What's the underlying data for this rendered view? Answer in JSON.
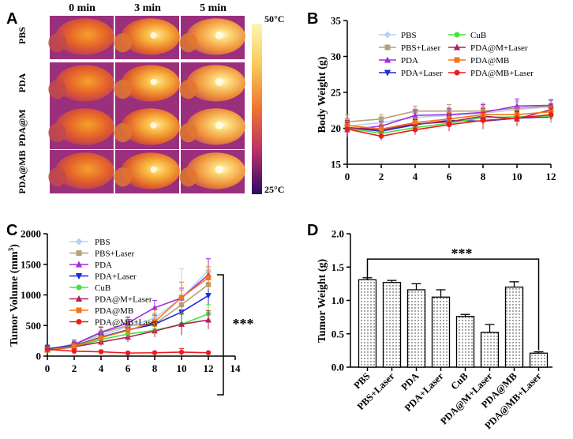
{
  "panel_labels": {
    "a": "A",
    "b": "B",
    "c": "C",
    "d": "D"
  },
  "colors": {
    "PBS": "#b9d3ef",
    "PBS+Laser": "#b5a27a",
    "PDA": "#a12fe0",
    "PDA+Laser": "#1d2bd6",
    "CuB": "#45e33b",
    "PDA@M+Laser": "#b0215b",
    "PDA@MB": "#f2761a",
    "PDA@MB+Laser": "#ee1c1c",
    "colorbar_top": "#fbf7b0",
    "colorbar_bottom": "#2a0a64"
  },
  "panel_a": {
    "time_labels": [
      "0 min",
      "3 min",
      "5 min"
    ],
    "row_labels": [
      "PBS",
      "PDA",
      "PDA@M",
      "PDA@MB"
    ],
    "scale_max": "50°C",
    "scale_min": "25°C"
  },
  "chart_data": [
    {
      "panel": "B",
      "type": "line",
      "title": "",
      "xlabel": "",
      "ylabel": "Body Weight (g)",
      "xlim": [
        0,
        12
      ],
      "ylim": [
        15,
        35
      ],
      "x": [
        0,
        2,
        4,
        6,
        8,
        10,
        12
      ],
      "xticks": [
        "0",
        "2",
        "4",
        "6",
        "8",
        "10",
        "12"
      ],
      "yticks": [
        "15",
        "20",
        "25",
        "30",
        "35"
      ],
      "series": [
        {
          "name": "PBS",
          "values": [
            20.3,
            20.8,
            21.5,
            21.8,
            22.1,
            22.6,
            23.0
          ]
        },
        {
          "name": "PBS+Laser",
          "values": [
            20.9,
            21.3,
            22.4,
            22.4,
            22.4,
            22.8,
            23.1
          ]
        },
        {
          "name": "PDA",
          "values": [
            19.8,
            20.3,
            21.8,
            21.9,
            22.2,
            23.1,
            23.2
          ]
        },
        {
          "name": "PDA+Laser",
          "values": [
            20.1,
            19.6,
            20.5,
            21.1,
            21.0,
            21.4,
            21.6
          ]
        },
        {
          "name": "CuB",
          "values": [
            20.0,
            19.3,
            20.1,
            20.7,
            21.5,
            21.6,
            21.7
          ]
        },
        {
          "name": "PDA@M+Laser",
          "values": [
            20.1,
            19.8,
            20.6,
            20.9,
            21.7,
            21.3,
            22.6
          ]
        },
        {
          "name": "PDA@MB",
          "values": [
            20.4,
            19.9,
            20.8,
            21.3,
            21.9,
            21.9,
            22.3
          ]
        },
        {
          "name": "PDA@MB+Laser",
          "values": [
            19.9,
            18.9,
            19.8,
            20.5,
            21.1,
            21.4,
            21.9
          ]
        }
      ],
      "error": [
        1.0,
        0.6,
        0.7,
        0.9,
        1.1,
        1.0,
        0.8
      ],
      "legend": "top"
    },
    {
      "panel": "C",
      "type": "line",
      "title": "",
      "xlabel": "",
      "ylabel": "Tumor Volume (mm3)",
      "ylabel_base": "Tumor Volume (mm",
      "ylabel_sup": "3",
      "ylabel_close": ")",
      "xlim": [
        0,
        14
      ],
      "ylim": [
        0,
        2000
      ],
      "x": [
        0,
        2,
        4,
        6,
        8,
        10,
        12
      ],
      "xticks": [
        "0",
        "2",
        "4",
        "6",
        "8",
        "10",
        "12",
        "14"
      ],
      "yticks": [
        "0",
        "500",
        "1000",
        "1500",
        "2000"
      ],
      "series": [
        {
          "name": "PBS",
          "values": [
            110,
            200,
            340,
            480,
            620,
            950,
            1400
          ],
          "err": [
            60,
            70,
            90,
            120,
            180,
            480,
            200
          ]
        },
        {
          "name": "PBS+Laser",
          "values": [
            100,
            180,
            380,
            500,
            520,
            840,
            1170
          ],
          "err": [
            50,
            60,
            100,
            130,
            180,
            240,
            200
          ]
        },
        {
          "name": "PDA",
          "values": [
            110,
            190,
            390,
            540,
            790,
            950,
            1330
          ],
          "err": [
            50,
            70,
            80,
            100,
            120,
            160,
            260
          ]
        },
        {
          "name": "PDA+Laser",
          "values": [
            120,
            170,
            310,
            430,
            520,
            720,
            990
          ],
          "err": [
            60,
            60,
            80,
            100,
            150,
            200,
            300
          ]
        },
        {
          "name": "CuB",
          "values": [
            90,
            150,
            270,
            360,
            420,
            520,
            690
          ],
          "err": [
            40,
            50,
            60,
            80,
            100,
            160,
            150
          ]
        },
        {
          "name": "PDA@M+Laser",
          "values": [
            100,
            150,
            230,
            310,
            410,
            520,
            590
          ],
          "err": [
            40,
            50,
            60,
            80,
            100,
            180,
            150
          ]
        },
        {
          "name": "PDA@MB",
          "values": [
            100,
            160,
            300,
            420,
            560,
            960,
            1280
          ],
          "err": [
            50,
            60,
            100,
            120,
            200,
            250,
            180
          ]
        },
        {
          "name": "PDA@MB+Laser",
          "values": [
            110,
            80,
            70,
            50,
            55,
            65,
            55
          ],
          "err": [
            60,
            40,
            30,
            20,
            20,
            60,
            15
          ]
        }
      ],
      "annotation": "***",
      "legend": "top-left"
    },
    {
      "panel": "D",
      "type": "bar",
      "title": "",
      "xlabel": "",
      "ylabel": "Tumor Weight (g)",
      "ylim": [
        0,
        2.0
      ],
      "yticks": [
        "0.0",
        "0.5",
        "1.0",
        "1.5",
        "2.0"
      ],
      "categories": [
        "PBS",
        "PBS+Laser",
        "PDA",
        "PDA+Laser",
        "CuB",
        "PDA@M+Laser",
        "PDA@MB",
        "PDA@MB+Laser"
      ],
      "values": [
        1.31,
        1.27,
        1.16,
        1.05,
        0.76,
        0.52,
        1.2,
        0.21
      ],
      "errors": [
        0.03,
        0.03,
        0.09,
        0.11,
        0.03,
        0.12,
        0.08,
        0.02
      ],
      "annotation": "***"
    }
  ]
}
